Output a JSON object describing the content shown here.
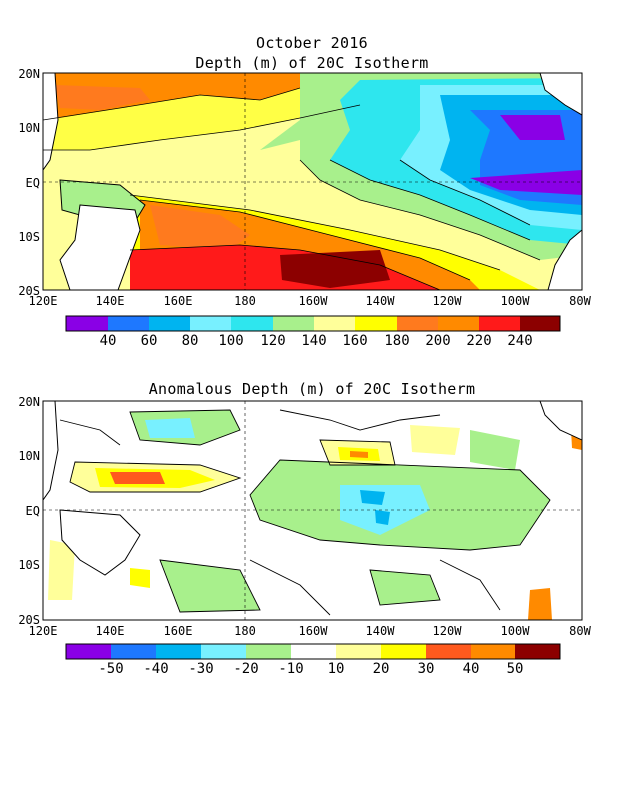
{
  "panels": [
    {
      "title_line1": "October 2016",
      "title_line2": "Depth (m) of 20C Isotherm",
      "lat_labels": [
        "20N",
        "10N",
        "EQ",
        "10S",
        "20S"
      ],
      "lon_labels": [
        "120E",
        "140E",
        "160E",
        "180",
        "160W",
        "140W",
        "120W",
        "100W",
        "80W"
      ],
      "colorbar": {
        "colors": [
          "#8a00e6",
          "#1e78ff",
          "#00b4f0",
          "#78f0ff",
          "#2ee6ee",
          "#a8f08c",
          "#ffff9a",
          "#ffff00",
          "#ff7a1e",
          "#ff8a00",
          "#ff1a1a",
          "#8c0000"
        ],
        "labels": [
          "40",
          "60",
          "80",
          "100",
          "120",
          "140",
          "160",
          "180",
          "200",
          "220",
          "240"
        ]
      }
    },
    {
      "title_line1": "",
      "title_line2": "Anomalous Depth (m) of 20C Isotherm",
      "lat_labels": [
        "20N",
        "10N",
        "EQ",
        "10S",
        "20S"
      ],
      "lon_labels": [
        "120E",
        "140E",
        "160E",
        "180",
        "160W",
        "140W",
        "120W",
        "100W",
        "80W"
      ],
      "colorbar": {
        "colors": [
          "#8a00e6",
          "#1e78ff",
          "#00b4f0",
          "#78f0ff",
          "#a8f08c",
          "#ffffff",
          "#ffff9a",
          "#ffff00",
          "#ff5a1e",
          "#ff8a00",
          "#8c0000"
        ],
        "labels": [
          "-50",
          "-40",
          "-30",
          "-20",
          "-10",
          "10",
          "20",
          "30",
          "40",
          "50"
        ]
      }
    }
  ]
}
